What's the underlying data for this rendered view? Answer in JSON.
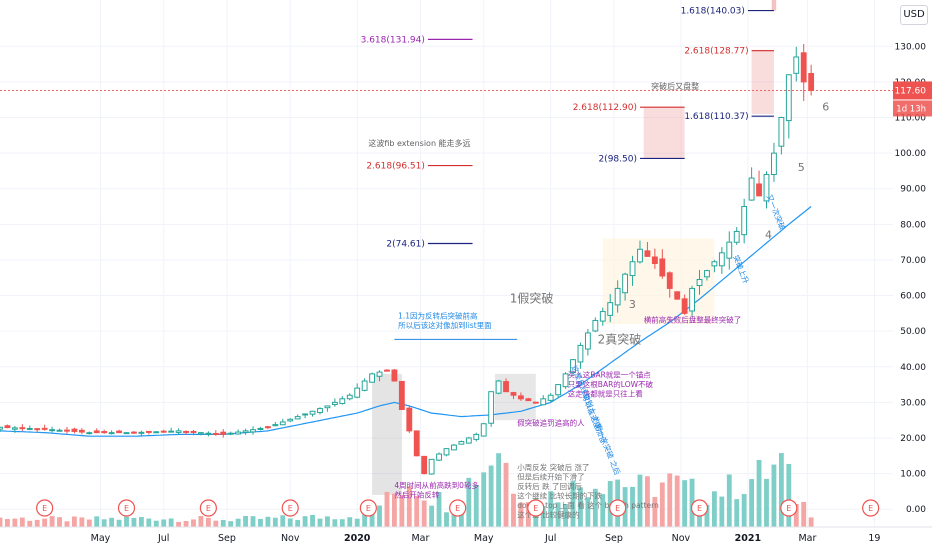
{
  "currency": "USD",
  "last_price": {
    "value": "117.60",
    "countdown": "1d 13h",
    "color": "#ef5350"
  },
  "colors": {
    "up": "#26a69a",
    "down": "#ef5350",
    "ma": "#2196f3",
    "vol_up": "#7fcfc8",
    "vol_down": "#f5a5a3"
  },
  "chart_data": {
    "type": "candlestick",
    "x_tick_labels": [
      "May",
      "Jul",
      "Sep",
      "Nov",
      "2020",
      "Mar",
      "May",
      "Jul",
      "Sep",
      "Nov",
      "2021",
      "Mar",
      "19"
    ],
    "x_ticks": [
      {
        "label": "May",
        "t": 13.5,
        "bold": false
      },
      {
        "label": "Jul",
        "t": 22,
        "bold": false
      },
      {
        "label": "Sep",
        "t": 30.5,
        "bold": false
      },
      {
        "label": "Nov",
        "t": 39,
        "bold": false
      },
      {
        "label": "2020",
        "t": 48,
        "bold": true
      },
      {
        "label": "Mar",
        "t": 56.5,
        "bold": false
      },
      {
        "label": "May",
        "t": 65,
        "bold": false
      },
      {
        "label": "Jul",
        "t": 74,
        "bold": false
      },
      {
        "label": "Sep",
        "t": 82.5,
        "bold": false
      },
      {
        "label": "Nov",
        "t": 91.5,
        "bold": false
      },
      {
        "label": "2021",
        "t": 100.5,
        "bold": true
      },
      {
        "label": "Mar",
        "t": 108.5,
        "bold": false
      },
      {
        "label": "19",
        "t": 117.5,
        "bold": false
      }
    ],
    "y_ticks": [
      0,
      10,
      20,
      30,
      40,
      50,
      60,
      70,
      80,
      90,
      100,
      110,
      120,
      130
    ],
    "y_tick_labels": [
      "0.00",
      "10.00",
      "20.00",
      "30.00",
      "40.00",
      "50.00",
      "60.00",
      "70.00",
      "80.00",
      "90.00",
      "100.00",
      "110.00",
      "120.00",
      "130.00"
    ],
    "ylim": [
      -5,
      143
    ],
    "price_points": [
      [
        0,
        23
      ],
      [
        6,
        22.5
      ],
      [
        12,
        21.5
      ],
      [
        18,
        21.5
      ],
      [
        24,
        22
      ],
      [
        30,
        21
      ],
      [
        36,
        23
      ],
      [
        40,
        26
      ],
      [
        44,
        29
      ],
      [
        47,
        32
      ],
      [
        50,
        38
      ],
      [
        52,
        39
      ],
      [
        53,
        36
      ],
      [
        54,
        28
      ],
      [
        55,
        22
      ],
      [
        56,
        15
      ],
      [
        57,
        10
      ],
      [
        58,
        14
      ],
      [
        60,
        17
      ],
      [
        62,
        19
      ],
      [
        64,
        21
      ],
      [
        65,
        24
      ],
      [
        66,
        33
      ],
      [
        67,
        36
      ],
      [
        68,
        33
      ],
      [
        70,
        31
      ],
      [
        72,
        30
      ],
      [
        74,
        32
      ],
      [
        76,
        38
      ],
      [
        78,
        46
      ],
      [
        80,
        53
      ],
      [
        82,
        58
      ],
      [
        84,
        66
      ],
      [
        86,
        73
      ],
      [
        88,
        69
      ],
      [
        90,
        62
      ],
      [
        91,
        59
      ],
      [
        92,
        55
      ],
      [
        93,
        62
      ],
      [
        95,
        67
      ],
      [
        97,
        72
      ],
      [
        99,
        78
      ],
      [
        100,
        85
      ],
      [
        101,
        93
      ],
      [
        102,
        88
      ],
      [
        103,
        94
      ],
      [
        104,
        100
      ],
      [
        105,
        110
      ],
      [
        106,
        122
      ],
      [
        107,
        127
      ],
      [
        108,
        120
      ],
      [
        109,
        117.6
      ]
    ],
    "ma_points": [
      [
        0,
        22
      ],
      [
        6,
        21.5
      ],
      [
        12,
        20.5
      ],
      [
        18,
        20.5
      ],
      [
        24,
        21
      ],
      [
        30,
        21
      ],
      [
        36,
        22
      ],
      [
        42,
        24.5
      ],
      [
        48,
        27
      ],
      [
        51,
        29
      ],
      [
        53,
        30
      ],
      [
        55,
        29
      ],
      [
        58,
        27
      ],
      [
        62,
        26
      ],
      [
        66,
        26.5
      ],
      [
        70,
        27.5
      ],
      [
        74,
        30
      ],
      [
        78,
        35
      ],
      [
        82,
        41
      ],
      [
        86,
        47
      ],
      [
        90,
        52.5
      ],
      [
        94,
        59
      ],
      [
        98,
        66
      ],
      [
        102,
        73
      ],
      [
        106,
        80
      ],
      [
        109,
        85
      ]
    ],
    "volume_points": [
      [
        0,
        6
      ],
      [
        10,
        5
      ],
      [
        20,
        6
      ],
      [
        30,
        5
      ],
      [
        40,
        6
      ],
      [
        48,
        8
      ],
      [
        52,
        18
      ],
      [
        55,
        32
      ],
      [
        57,
        24
      ],
      [
        60,
        16
      ],
      [
        65,
        40
      ],
      [
        67,
        55
      ],
      [
        69,
        30
      ],
      [
        72,
        18
      ],
      [
        75,
        22
      ],
      [
        78,
        28
      ],
      [
        82,
        34
      ],
      [
        86,
        26
      ],
      [
        90,
        30
      ],
      [
        94,
        22
      ],
      [
        98,
        26
      ],
      [
        102,
        34
      ],
      [
        105,
        42
      ],
      [
        107,
        20
      ],
      [
        109,
        10
      ]
    ],
    "fib_levels": [
      {
        "label": "3.618(131.94)",
        "y": 131.94,
        "t0": 57.5,
        "t1": 63.5,
        "color": "#9c27b0"
      },
      {
        "label": "2.618(96.51)",
        "y": 96.51,
        "t0": 57.5,
        "t1": 63.5,
        "color": "#d32f2f"
      },
      {
        "label": "2(74.61)",
        "y": 74.61,
        "t0": 57.5,
        "t1": 63.5,
        "color": "#1a237e"
      },
      {
        "label": "2.618(112.90)",
        "y": 112.9,
        "t0": 86,
        "t1": 92,
        "color": "#d32f2f"
      },
      {
        "label": "2(98.50)",
        "y": 98.5,
        "t0": 86,
        "t1": 92,
        "color": "#1a237e"
      },
      {
        "label": "1.618(140.03)",
        "y": 140.03,
        "t0": 100.5,
        "t1": 104,
        "color": "#1a237e"
      },
      {
        "label": "2.618(128.77)",
        "y": 128.77,
        "t0": 101,
        "t1": 104,
        "color": "#d32f2f"
      },
      {
        "label": "1.618(110.37)",
        "y": 110.37,
        "t0": 101,
        "t1": 104,
        "color": "#1a237e"
      }
    ],
    "shaded_zones": [
      {
        "t0": 50,
        "t1": 54,
        "y0": 4,
        "y1": 38,
        "fill": "#9e9e9e",
        "opacity": 0.28
      },
      {
        "t0": 66.5,
        "t1": 72,
        "y0": 25,
        "y1": 38,
        "fill": "#9e9e9e",
        "opacity": 0.25
      },
      {
        "t0": 86.5,
        "t1": 92,
        "y0": 98.5,
        "y1": 113,
        "fill": "#ef9a9a",
        "opacity": 0.35
      },
      {
        "t0": 81,
        "t1": 96,
        "y0": 52,
        "y1": 76,
        "fill": "#fff3e0",
        "opacity": 0.7
      },
      {
        "t0": 101,
        "t1": 104,
        "y0": 111,
        "y1": 129,
        "fill": "#ef9a9a",
        "opacity": 0.35
      },
      {
        "t0": 103.7,
        "t1": 104.3,
        "y0": 140,
        "y1": 148,
        "fill": "#ef9a9a",
        "opacity": 0.6
      }
    ],
    "dashed_price_line": 117.6,
    "event_markers_t": [
      6,
      17,
      28,
      39,
      49.5,
      61.5,
      72,
      83,
      94,
      106,
      117
    ],
    "annotations": {
      "fib_comment": "这波fib extension 能走多远",
      "after_breakout": "突破后又盘整",
      "false_breakout_1": "1假突破",
      "true_breakout_2": "2真突破",
      "w3": "3",
      "w4": "4",
      "w5": "5",
      "w6": "6",
      "note_1": "1.1因为反转后突破前高\n所以后该这对像加到list里面",
      "note_horizontal": "横前高失败后盘整最终突破了",
      "note_purple_block": "买入这BAR就是一个锚点\n只要这根BAR的LOW不破\n这走势都就是只往上看",
      "note_fake_chase": "假突破追罚追高的人",
      "note_bottom_left": "4周时间从前高跌到0轮多\n然后开始反转",
      "note_bottom_center": "小周反发 突破后 涨了\n但是后续开始下滑了\n反转后 跌 了回调后\n这个继续 比较长期的下跌\ndouble top 上面 看 这个 bullish pattern\n这个是 比较健康的",
      "note_diag_1": "这是日线级别上 的第一次突破 之后",
      "note_diag_2": "可以在这里加仓",
      "note_diag_3": "突破上升",
      "note_diag_4": "又一次突破"
    }
  }
}
